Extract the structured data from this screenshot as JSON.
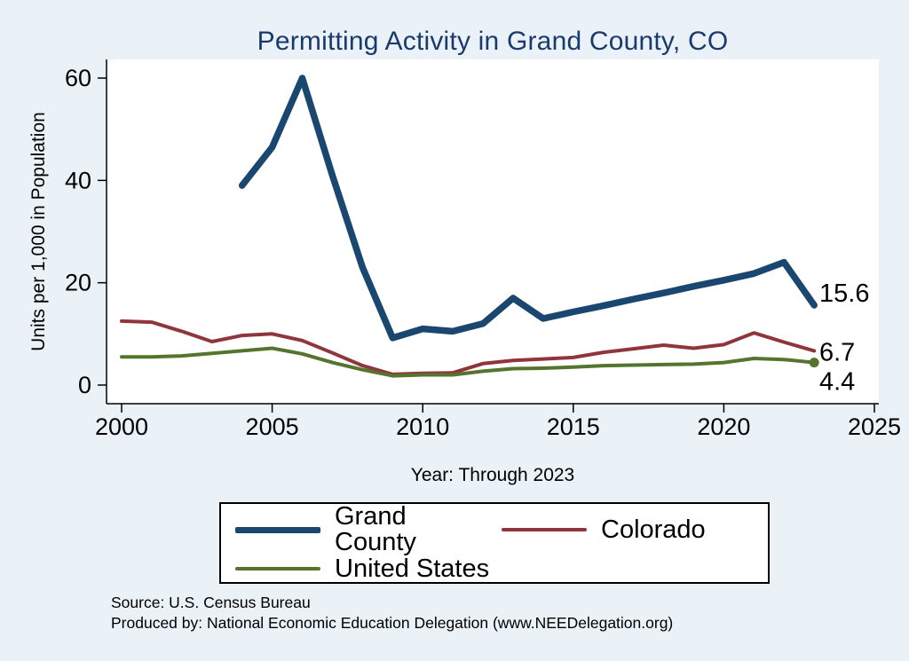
{
  "title": "Permitting Activity in Grand County, CO",
  "ylabel": "Units per 1,000 in Population",
  "xlabel": "Year: Through 2023",
  "footer": {
    "source": "Source: U.S. Census Bureau",
    "produced_by": "Produced by: National Economic Education Delegation (www.NEEDelegation.org)"
  },
  "legend": [
    {
      "label": "Grand County",
      "color": "#1a476f",
      "width": 7
    },
    {
      "label": "Colorado",
      "color": "#90353b",
      "width": 4
    },
    {
      "label": "United States",
      "color": "#55752f",
      "width": 4
    }
  ],
  "end_labels": [
    {
      "text": "15.6",
      "value": 15.6
    },
    {
      "text": "6.7",
      "value": 6.7
    },
    {
      "text": "4.4",
      "value": 4.4
    }
  ],
  "chart_data": {
    "type": "line",
    "title": "Permitting Activity in Grand County, CO",
    "xlabel": "Year: Through 2023",
    "ylabel": "Units per 1,000 in Population",
    "xlim": [
      2000,
      2025
    ],
    "ylim": [
      0,
      60
    ],
    "x_ticks": [
      2000,
      2005,
      2010,
      2015,
      2020,
      2025
    ],
    "y_ticks": [
      0,
      20,
      40,
      60
    ],
    "grid": false,
    "legend_position": "bottom",
    "series": [
      {
        "name": "Grand County",
        "color": "#1a476f",
        "line_width": 7.5,
        "end_marker": false,
        "x": [
          2004,
          2005,
          2006,
          2007,
          2008,
          2009,
          2010,
          2011,
          2012,
          2013,
          2014,
          2015,
          2016,
          2017,
          2018,
          2019,
          2020,
          2021,
          2022,
          2023
        ],
        "values": [
          39,
          46.5,
          60,
          41,
          23,
          9.2,
          11,
          10.5,
          12,
          17,
          13,
          14.3,
          15.5,
          16.8,
          18,
          19.3,
          20.5,
          21.8,
          24,
          15.6
        ]
      },
      {
        "name": "Colorado",
        "color": "#90353b",
        "line_width": 4,
        "end_marker": false,
        "x": [
          2000,
          2001,
          2002,
          2003,
          2004,
          2005,
          2006,
          2007,
          2008,
          2009,
          2010,
          2011,
          2012,
          2013,
          2014,
          2015,
          2016,
          2017,
          2018,
          2019,
          2020,
          2021,
          2022,
          2023
        ],
        "values": [
          12.5,
          12.3,
          10.5,
          8.5,
          9.7,
          10,
          8.7,
          6.3,
          3.8,
          2.1,
          2.3,
          2.4,
          4.2,
          4.8,
          5.1,
          5.4,
          6.4,
          7.1,
          7.8,
          7.2,
          7.9,
          10.2,
          8.4,
          6.7
        ]
      },
      {
        "name": "United States",
        "color": "#55752f",
        "line_width": 4,
        "end_marker": true,
        "x": [
          2000,
          2001,
          2002,
          2003,
          2004,
          2005,
          2006,
          2007,
          2008,
          2009,
          2010,
          2011,
          2012,
          2013,
          2014,
          2015,
          2016,
          2017,
          2018,
          2019,
          2020,
          2021,
          2022,
          2023
        ],
        "values": [
          5.5,
          5.5,
          5.7,
          6.2,
          6.7,
          7.2,
          6.1,
          4.4,
          3.0,
          1.8,
          2.0,
          2.0,
          2.7,
          3.2,
          3.3,
          3.5,
          3.8,
          3.9,
          4.0,
          4.1,
          4.4,
          5.2,
          5.0,
          4.4
        ]
      }
    ]
  }
}
